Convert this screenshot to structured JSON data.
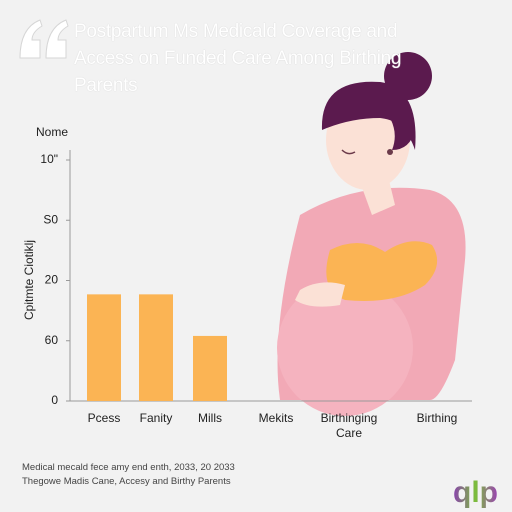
{
  "chart_data": {
    "type": "bar",
    "title": "Postpartum Ms Medicald Coverage and Access on Funded Care Among Birthing Parents",
    "y_unit_label": "Nome",
    "y_label": "Cpitmte Ciotiklj",
    "categories": [
      "Pcess",
      "Fanity",
      "Mills",
      "Mekits",
      "Birthinging Care",
      "Birthing"
    ],
    "values": [
      1.77,
      1.77,
      1.08,
      null,
      null,
      null
    ],
    "color": "#fbb454",
    "ylim": [
      0,
      4
    ],
    "yticks": [
      {
        "value": 0,
        "label": "0"
      },
      {
        "value": 1,
        "label": "60"
      },
      {
        "value": 2,
        "label": "20"
      },
      {
        "value": 3,
        "label": "S0"
      },
      {
        "value": 4,
        "label": "10\""
      }
    ],
    "grid": false,
    "notes": [
      "Medical mecald fece amy end enth, 2033, 20 2033",
      "Thegowe Madis Cane, Accesy and Birthy Parents"
    ]
  },
  "logo": "qlp"
}
